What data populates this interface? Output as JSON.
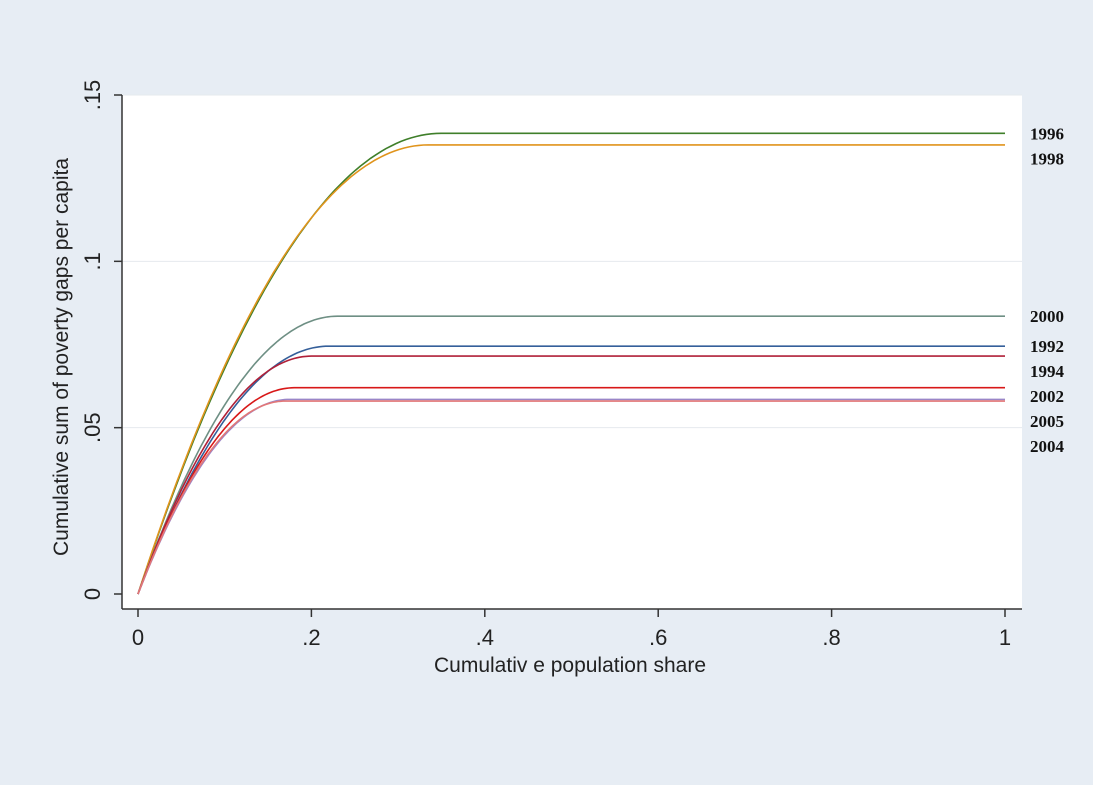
{
  "chart_data": {
    "type": "line",
    "title": "",
    "xlabel": "Cumulativ e population share",
    "ylabel": "Cumulative sum of poverty gaps per capita",
    "xlim": [
      0,
      1
    ],
    "ylim": [
      0,
      0.15
    ],
    "x_ticks": [
      {
        "value": 0,
        "label": "0"
      },
      {
        "value": 0.2,
        "label": ".2"
      },
      {
        "value": 0.4,
        "label": ".4"
      },
      {
        "value": 0.6,
        "label": ".6"
      },
      {
        "value": 0.8,
        "label": ".8"
      },
      {
        "value": 1,
        "label": "1"
      }
    ],
    "y_ticks": [
      {
        "value": 0,
        "label": "0"
      },
      {
        "value": 0.05,
        "label": ".05"
      },
      {
        "value": 0.1,
        "label": ".1"
      },
      {
        "value": 0.15,
        "label": ".15"
      }
    ],
    "grid": true,
    "legend": "direct labels at right end of lines",
    "series": [
      {
        "name": "1996",
        "color": "#3f7f2a",
        "plateau_x": 0.35,
        "plateau_y": 0.1385
      },
      {
        "name": "1998",
        "color": "#e0941c",
        "plateau_x": 0.335,
        "plateau_y": 0.135
      },
      {
        "name": "2000",
        "color": "#6e8f84",
        "plateau_x": 0.23,
        "plateau_y": 0.0835
      },
      {
        "name": "1992",
        "color": "#355f9a",
        "plateau_x": 0.22,
        "plateau_y": 0.0745
      },
      {
        "name": "1994",
        "color": "#b02038",
        "plateau_x": 0.2,
        "plateau_y": 0.0715
      },
      {
        "name": "2002",
        "color": "#d81818",
        "plateau_x": 0.18,
        "plateau_y": 0.062
      },
      {
        "name": "2005",
        "color": "#9a86c8",
        "plateau_x": 0.175,
        "plateau_y": 0.0585
      },
      {
        "name": "2004",
        "color": "#e37777",
        "plateau_x": 0.17,
        "plateau_y": 0.058
      }
    ]
  }
}
